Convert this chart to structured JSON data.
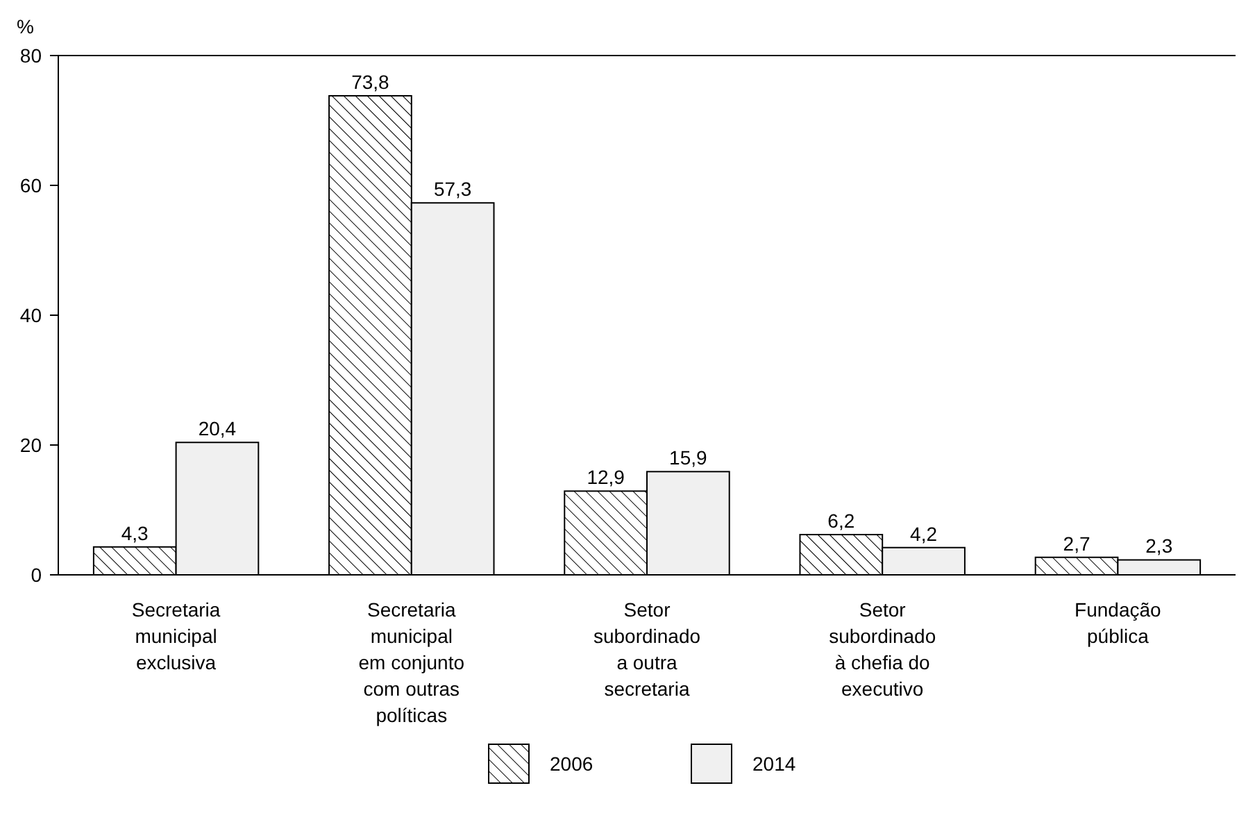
{
  "chart_data": {
    "type": "bar",
    "ylabel": "%",
    "categories": [
      "Secretaria municipal exclusiva",
      "Secretaria municipal em conjunto com outras políticas",
      "Setor subordinado a outra secretaria",
      "Setor subordinado à chefia do executivo",
      "Fundação pública"
    ],
    "series": [
      {
        "name": "2006",
        "color": "#000000",
        "values": [
          4.3,
          73.8,
          12.9,
          6.2,
          2.7
        ],
        "value_labels": [
          "4,3",
          "73,8",
          "12,9",
          "6,2",
          "2,7"
        ]
      },
      {
        "name": "2014",
        "color": "#f0f0f0",
        "values": [
          20.4,
          57.3,
          15.9,
          4.2,
          2.3
        ],
        "value_labels": [
          "20,4",
          "57,3",
          "15,9",
          "4,2",
          "2,3"
        ]
      }
    ],
    "ylim": [
      0,
      80
    ],
    "yticks": [
      0,
      20,
      40,
      60,
      80
    ],
    "grid": false,
    "legend": "bottom"
  }
}
